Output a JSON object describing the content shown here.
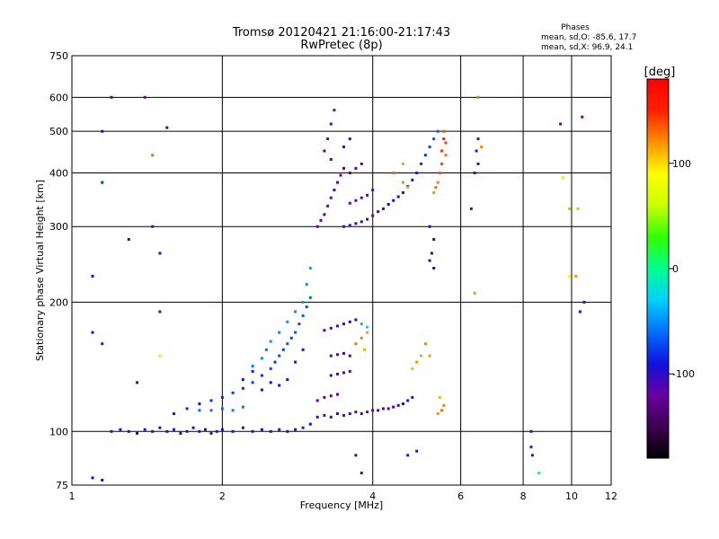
{
  "chart_data": {
    "type": "scatter",
    "title": "Tromsø 20120421 21:16:00-21:17:43",
    "subtitle": "RwPretec (8p)",
    "xlabel": "Frequency [MHz]",
    "ylabel": "Stationary phase Virtual Height [km]",
    "x_scale": "log",
    "y_scale": "log",
    "xlim": [
      1,
      12
    ],
    "ylim": [
      75,
      750
    ],
    "x_ticks": [
      1,
      2,
      4,
      6,
      8,
      10,
      12
    ],
    "y_ticks": [
      75,
      100,
      200,
      300,
      400,
      500,
      600,
      750
    ],
    "grid": true,
    "stats": {
      "title": "Phases",
      "line1": "mean, sd,O: -85.6, 17.7",
      "line2": "mean, sd,X:  96.9, 24.1"
    },
    "colorbar": {
      "unit": "[deg]",
      "range": [
        -180,
        180
      ],
      "ticks": [
        100,
        0,
        -100
      ],
      "colors": [
        "#000000",
        "#3c0050",
        "#6a00a0",
        "#1010e0",
        "#0070ff",
        "#00d0ff",
        "#00ff90",
        "#30ff00",
        "#c8ff00",
        "#ffff00",
        "#ff9000",
        "#ff2000",
        "#ff0000"
      ]
    },
    "series": [
      {
        "points": [
          [
            1.2,
            100,
            -95
          ],
          [
            1.25,
            101,
            -92
          ],
          [
            1.3,
            100,
            -98
          ],
          [
            1.35,
            99,
            -90
          ],
          [
            1.4,
            101,
            -96
          ],
          [
            1.45,
            100,
            -88
          ],
          [
            1.5,
            102,
            -94
          ],
          [
            1.55,
            100,
            -100
          ],
          [
            1.6,
            101,
            -86
          ],
          [
            1.65,
            99,
            -93
          ],
          [
            1.7,
            100,
            -97
          ],
          [
            1.75,
            102,
            -91
          ],
          [
            1.8,
            100,
            -89
          ],
          [
            1.85,
            101,
            -95
          ],
          [
            1.9,
            99,
            -99
          ],
          [
            1.95,
            100,
            -87
          ],
          [
            2.0,
            101,
            -93
          ],
          [
            2.1,
            100,
            -96
          ],
          [
            2.2,
            102,
            -90
          ],
          [
            2.3,
            100,
            -94
          ],
          [
            2.4,
            101,
            -92
          ],
          [
            2.5,
            100,
            -98
          ],
          [
            2.6,
            101,
            -88
          ],
          [
            2.7,
            100,
            -95
          ],
          [
            2.8,
            101,
            -91
          ],
          [
            2.9,
            102,
            -86
          ],
          [
            3.0,
            104,
            -90
          ],
          [
            1.6,
            110,
            -85
          ],
          [
            1.7,
            113,
            -82
          ],
          [
            1.8,
            116,
            -88
          ],
          [
            1.9,
            118,
            -80
          ],
          [
            2.0,
            120,
            -84
          ],
          [
            2.1,
            123,
            -78
          ],
          [
            2.2,
            126,
            -83
          ],
          [
            2.3,
            130,
            -76
          ],
          [
            2.4,
            135,
            -80
          ],
          [
            2.5,
            140,
            -74
          ],
          [
            2.55,
            145,
            -79
          ],
          [
            2.6,
            150,
            -72
          ],
          [
            2.65,
            155,
            -77
          ],
          [
            2.7,
            160,
            -70
          ],
          [
            2.75,
            165,
            -75
          ],
          [
            2.8,
            170,
            -68
          ],
          [
            2.85,
            178,
            -73
          ],
          [
            2.9,
            186,
            -66
          ],
          [
            2.95,
            195,
            -71
          ],
          [
            3.0,
            205,
            -64
          ],
          [
            1.8,
            112,
            -60
          ],
          [
            1.9,
            112,
            -58
          ],
          [
            2.0,
            113,
            -62
          ],
          [
            2.1,
            112,
            -55
          ],
          [
            2.2,
            114,
            -60
          ],
          [
            2.3,
            142,
            -55
          ],
          [
            2.4,
            148,
            -52
          ],
          [
            2.45,
            155,
            -58
          ],
          [
            2.5,
            162,
            -50
          ],
          [
            2.6,
            170,
            -54
          ],
          [
            2.7,
            180,
            -48
          ],
          [
            2.8,
            190,
            -52
          ],
          [
            2.9,
            200,
            -46
          ],
          [
            2.95,
            220,
            -50
          ],
          [
            3.0,
            240,
            -44
          ],
          [
            2.2,
            132,
            -95
          ],
          [
            2.3,
            138,
            -98
          ],
          [
            2.4,
            125,
            -92
          ],
          [
            2.5,
            130,
            -96
          ],
          [
            2.6,
            128,
            -90
          ],
          [
            2.7,
            132,
            -94
          ],
          [
            2.8,
            145,
            -88
          ],
          [
            2.9,
            155,
            -92
          ],
          [
            3.1,
            108,
            -110
          ],
          [
            3.2,
            109,
            -115
          ],
          [
            3.3,
            108,
            -108
          ],
          [
            3.4,
            110,
            -112
          ],
          [
            3.5,
            109,
            -118
          ],
          [
            3.6,
            110,
            -110
          ],
          [
            3.7,
            111,
            -114
          ],
          [
            3.8,
            110,
            -106
          ],
          [
            3.9,
            111,
            -112
          ],
          [
            4.0,
            112,
            -108
          ],
          [
            4.1,
            112,
            -110
          ],
          [
            4.2,
            113,
            -104
          ],
          [
            4.3,
            113,
            -110
          ],
          [
            4.4,
            114,
            -100
          ],
          [
            4.5,
            115,
            -106
          ],
          [
            4.6,
            116,
            -98
          ],
          [
            4.7,
            118,
            -102
          ],
          [
            4.8,
            120,
            -96
          ],
          [
            3.1,
            118,
            -120
          ],
          [
            3.2,
            120,
            -125
          ],
          [
            3.3,
            121,
            -118
          ],
          [
            3.4,
            122,
            -124
          ],
          [
            3.3,
            135,
            -110
          ],
          [
            3.4,
            136,
            -115
          ],
          [
            3.5,
            137,
            -108
          ],
          [
            3.6,
            138,
            -112
          ],
          [
            3.3,
            150,
            -105
          ],
          [
            3.4,
            151,
            -112
          ],
          [
            3.5,
            152,
            -100
          ],
          [
            3.6,
            150,
            -108
          ],
          [
            3.2,
            172,
            -115
          ],
          [
            3.3,
            174,
            -110
          ],
          [
            3.4,
            176,
            -118
          ],
          [
            3.5,
            178,
            -105
          ],
          [
            3.6,
            180,
            -100
          ],
          [
            3.7,
            182,
            -95
          ],
          [
            3.8,
            178,
            -40
          ],
          [
            3.9,
            175,
            -30
          ],
          [
            3.1,
            300,
            -125
          ],
          [
            3.15,
            310,
            -122
          ],
          [
            3.2,
            320,
            -128
          ],
          [
            3.25,
            335,
            -120
          ],
          [
            3.3,
            350,
            -126
          ],
          [
            3.35,
            365,
            -118
          ],
          [
            3.4,
            380,
            -124
          ],
          [
            3.45,
            395,
            -120
          ],
          [
            3.5,
            410,
            -128
          ],
          [
            3.3,
            430,
            -122
          ],
          [
            3.2,
            450,
            -126
          ],
          [
            3.25,
            480,
            -118
          ],
          [
            3.3,
            520,
            -124
          ],
          [
            3.35,
            560,
            -120
          ],
          [
            3.5,
            300,
            -110
          ],
          [
            3.6,
            302,
            -112
          ],
          [
            3.7,
            305,
            -108
          ],
          [
            3.8,
            308,
            -110
          ],
          [
            3.9,
            312,
            -106
          ],
          [
            4.0,
            318,
            -104
          ],
          [
            4.1,
            325,
            -102
          ],
          [
            4.2,
            330,
            -100
          ],
          [
            4.3,
            338,
            -98
          ],
          [
            4.4,
            345,
            -96
          ],
          [
            4.5,
            352,
            -94
          ],
          [
            4.6,
            360,
            -92
          ],
          [
            4.7,
            372,
            -90
          ],
          [
            4.8,
            385,
            -88
          ],
          [
            4.9,
            400,
            -86
          ],
          [
            5.0,
            420,
            -80
          ],
          [
            5.1,
            440,
            -76
          ],
          [
            5.2,
            460,
            -72
          ],
          [
            5.3,
            480,
            -70
          ],
          [
            5.4,
            500,
            -66
          ],
          [
            3.6,
            340,
            -120
          ],
          [
            3.7,
            345,
            -118
          ],
          [
            3.8,
            350,
            -116
          ],
          [
            3.9,
            355,
            -114
          ],
          [
            4.0,
            365,
            -110
          ],
          [
            3.6,
            400,
            -115
          ],
          [
            3.7,
            410,
            -112
          ],
          [
            3.8,
            420,
            -110
          ],
          [
            3.5,
            460,
            -108
          ],
          [
            3.6,
            480,
            -106
          ],
          [
            5.3,
            360,
            120
          ],
          [
            5.35,
            370,
            130
          ],
          [
            5.4,
            380,
            125
          ],
          [
            5.45,
            400,
            135
          ],
          [
            5.5,
            420,
            140
          ],
          [
            5.5,
            450,
            145
          ],
          [
            5.55,
            480,
            150
          ],
          [
            5.55,
            500,
            138
          ],
          [
            5.6,
            470,
            142
          ],
          [
            5.6,
            440,
            130
          ],
          [
            4.8,
            140,
            110
          ],
          [
            4.9,
            145,
            120
          ],
          [
            5.0,
            150,
            115
          ],
          [
            5.1,
            160,
            125
          ],
          [
            5.2,
            150,
            118
          ],
          [
            3.7,
            160,
            130
          ],
          [
            3.8,
            165,
            125
          ],
          [
            3.9,
            170,
            118
          ],
          [
            3.85,
            155,
            112
          ],
          [
            5.4,
            110,
            120
          ],
          [
            5.5,
            112,
            130
          ],
          [
            5.55,
            115,
            125
          ],
          [
            5.45,
            120,
            110
          ],
          [
            4.6,
            380,
            120
          ],
          [
            4.7,
            370,
            110
          ],
          [
            4.4,
            400,
            130
          ],
          [
            4.6,
            420,
            115
          ],
          [
            5.2,
            250,
            -100
          ],
          [
            5.25,
            260,
            -96
          ],
          [
            5.3,
            240,
            -98
          ],
          [
            5.3,
            280,
            -94
          ],
          [
            5.2,
            300,
            -92
          ],
          [
            6.4,
            400,
            -120
          ],
          [
            6.5,
            420,
            -110
          ],
          [
            6.45,
            450,
            -118
          ],
          [
            6.5,
            480,
            -112
          ],
          [
            6.6,
            460,
            120
          ],
          [
            6.5,
            600,
            130
          ],
          [
            6.3,
            330,
            -110
          ],
          [
            6.4,
            210,
            120
          ],
          [
            8.3,
            100,
            -110
          ],
          [
            8.3,
            92,
            -115
          ],
          [
            8.35,
            88,
            -105
          ],
          [
            8.6,
            80,
            10
          ],
          [
            10.5,
            540,
            -120
          ],
          [
            10.3,
            330,
            110
          ],
          [
            10.2,
            230,
            120
          ],
          [
            10.6,
            200,
            -100
          ],
          [
            10.4,
            190,
            -98
          ],
          [
            9.5,
            520,
            -110
          ],
          [
            9.6,
            390,
            60
          ],
          [
            9.9,
            330,
            110
          ],
          [
            9.9,
            230,
            90
          ],
          [
            1.15,
            500,
            -90
          ],
          [
            1.15,
            380,
            -80
          ],
          [
            1.1,
            230,
            -100
          ],
          [
            1.1,
            170,
            -105
          ],
          [
            1.15,
            160,
            -110
          ],
          [
            1.3,
            280,
            -95
          ],
          [
            1.4,
            600,
            -120
          ],
          [
            1.45,
            300,
            -110
          ],
          [
            1.5,
            190,
            -100
          ],
          [
            1.5,
            260,
            -92
          ],
          [
            1.55,
            510,
            -104
          ],
          [
            1.45,
            440,
            130
          ],
          [
            1.35,
            130,
            -115
          ],
          [
            1.5,
            150,
            60
          ],
          [
            1.1,
            78,
            -90
          ],
          [
            1.15,
            77,
            -95
          ],
          [
            1.2,
            600,
            -110
          ],
          [
            3.8,
            80,
            -110
          ],
          [
            3.7,
            88,
            -105
          ],
          [
            4.7,
            88,
            -100
          ],
          [
            4.9,
            90,
            -108
          ]
        ]
      }
    ]
  }
}
